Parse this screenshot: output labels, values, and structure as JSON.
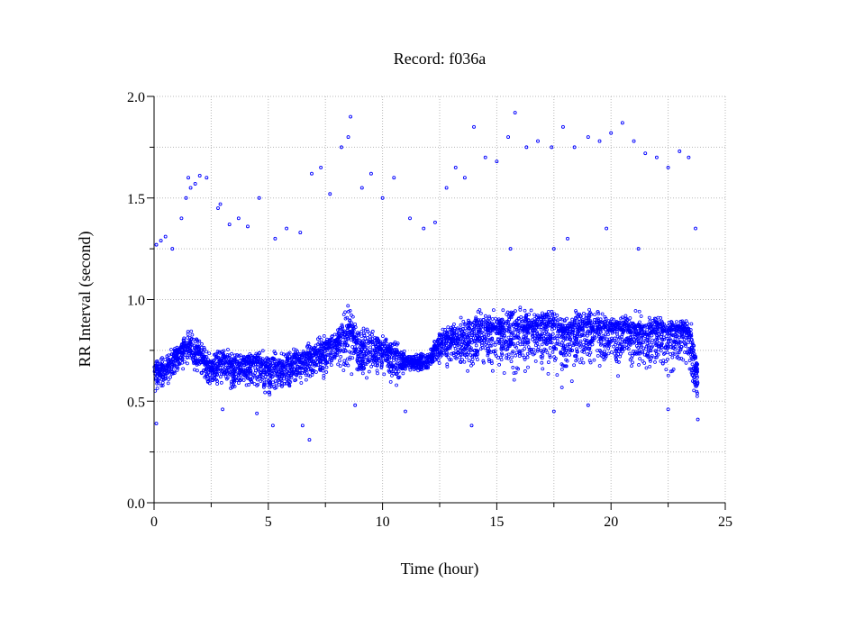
{
  "chart_data": {
    "type": "scatter",
    "title": "Record:  f036a",
    "xlabel": "Time (hour)",
    "ylabel": "RR Interval (second)",
    "xlim": [
      0,
      25
    ],
    "ylim": [
      0.0,
      2.0
    ],
    "xticks": [
      "0",
      "5",
      "10",
      "15",
      "20",
      "25"
    ],
    "yticks": [
      "0.0",
      "0.5",
      "1.0",
      "1.5",
      "2.0"
    ],
    "grid": true,
    "marker_color": "#0000ff",
    "marker": "open-circle",
    "main_band": {
      "x": [
        0,
        0.5,
        1,
        1.5,
        2,
        2.5,
        3,
        3.5,
        4,
        4.5,
        5,
        5.5,
        6,
        6.5,
        7,
        7.5,
        8,
        8.5,
        9,
        9.5,
        10,
        10.5,
        11,
        11.5,
        12,
        12.5,
        13,
        13.5,
        14,
        14.5,
        15,
        15.5,
        16,
        16.5,
        17,
        17.5,
        18,
        18.5,
        19,
        19.5,
        20,
        20.5,
        21,
        21.5,
        22,
        22.5,
        23,
        23.5,
        23.8
      ],
      "y_center": [
        0.63,
        0.66,
        0.72,
        0.78,
        0.73,
        0.65,
        0.7,
        0.65,
        0.68,
        0.68,
        0.66,
        0.66,
        0.68,
        0.7,
        0.72,
        0.75,
        0.78,
        0.85,
        0.75,
        0.78,
        0.74,
        0.72,
        0.69,
        0.69,
        0.7,
        0.78,
        0.8,
        0.8,
        0.82,
        0.85,
        0.83,
        0.85,
        0.85,
        0.86,
        0.87,
        0.85,
        0.83,
        0.84,
        0.86,
        0.85,
        0.85,
        0.85,
        0.84,
        0.82,
        0.85,
        0.84,
        0.85,
        0.82,
        0.62
      ],
      "y_min": [
        0.52,
        0.55,
        0.62,
        0.66,
        0.62,
        0.55,
        0.55,
        0.48,
        0.52,
        0.5,
        0.48,
        0.5,
        0.52,
        0.55,
        0.55,
        0.6,
        0.65,
        0.55,
        0.58,
        0.6,
        0.6,
        0.52,
        0.62,
        0.64,
        0.64,
        0.65,
        0.65,
        0.62,
        0.6,
        0.62,
        0.55,
        0.55,
        0.58,
        0.62,
        0.62,
        0.55,
        0.55,
        0.6,
        0.62,
        0.6,
        0.62,
        0.55,
        0.62,
        0.6,
        0.62,
        0.55,
        0.65,
        0.55,
        0.45
      ],
      "y_max": [
        0.72,
        0.74,
        0.8,
        0.88,
        0.83,
        0.74,
        0.78,
        0.75,
        0.76,
        0.76,
        0.76,
        0.76,
        0.78,
        0.8,
        0.82,
        0.85,
        0.88,
        1.0,
        0.9,
        0.88,
        0.84,
        0.82,
        0.75,
        0.74,
        0.76,
        0.88,
        0.92,
        0.94,
        0.96,
        0.98,
        0.96,
        1.0,
        0.98,
        0.96,
        0.97,
        0.97,
        0.95,
        0.96,
        0.97,
        0.96,
        0.96,
        0.96,
        0.95,
        0.94,
        0.94,
        0.93,
        0.92,
        0.9,
        0.7
      ]
    },
    "outliers": {
      "x": [
        0.1,
        0.3,
        0.5,
        0.8,
        1.2,
        1.4,
        1.5,
        1.6,
        1.8,
        2.0,
        2.3,
        2.8,
        2.9,
        3.3,
        3.7,
        4.1,
        4.6,
        5.3,
        5.8,
        6.4,
        6.9,
        7.3,
        7.7,
        8.2,
        8.5,
        8.6,
        9.1,
        9.5,
        10.0,
        10.5,
        11.2,
        11.8,
        12.3,
        12.8,
        13.2,
        13.6,
        14.0,
        14.5,
        15.0,
        15.5,
        15.8,
        16.3,
        16.8,
        17.4,
        17.9,
        18.4,
        19.0,
        19.5,
        20.0,
        20.5,
        21.0,
        21.5,
        22.0,
        22.5,
        23.0,
        23.4,
        23.7,
        15.6,
        17.5,
        19.8,
        18.1,
        21.2,
        0.1,
        3.0,
        5.2,
        6.8,
        6.5,
        11.0,
        13.9,
        17.5,
        19.0,
        22.5,
        23.8,
        4.5,
        8.8
      ],
      "y": [
        1.27,
        1.29,
        1.31,
        1.25,
        1.4,
        1.5,
        1.6,
        1.55,
        1.57,
        1.61,
        1.6,
        1.45,
        1.47,
        1.37,
        1.4,
        1.36,
        1.5,
        1.3,
        1.35,
        1.33,
        1.62,
        1.65,
        1.52,
        1.75,
        1.8,
        1.9,
        1.55,
        1.62,
        1.5,
        1.6,
        1.4,
        1.35,
        1.38,
        1.55,
        1.65,
        1.6,
        1.85,
        1.7,
        1.68,
        1.8,
        1.92,
        1.75,
        1.78,
        1.75,
        1.85,
        1.75,
        1.8,
        1.78,
        1.82,
        1.87,
        1.78,
        1.72,
        1.7,
        1.65,
        1.73,
        1.7,
        1.35,
        1.25,
        1.25,
        1.35,
        1.3,
        1.25,
        0.39,
        0.46,
        0.38,
        0.31,
        0.38,
        0.45,
        0.38,
        0.45,
        0.48,
        0.46,
        0.41,
        0.44,
        0.48
      ]
    }
  }
}
